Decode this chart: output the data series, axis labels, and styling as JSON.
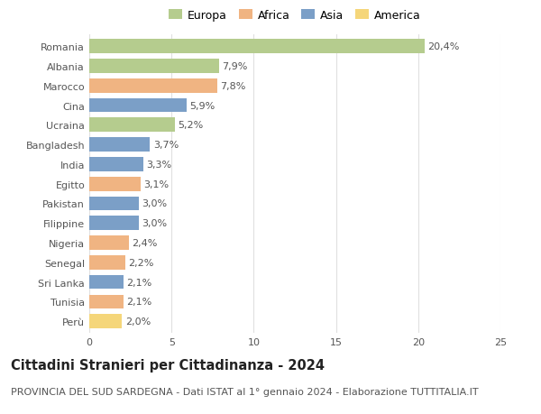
{
  "countries": [
    "Romania",
    "Albania",
    "Marocco",
    "Cina",
    "Ucraina",
    "Bangladesh",
    "India",
    "Egitto",
    "Pakistan",
    "Filippine",
    "Nigeria",
    "Senegal",
    "Sri Lanka",
    "Tunisia",
    "Perù"
  ],
  "values": [
    20.4,
    7.9,
    7.8,
    5.9,
    5.2,
    3.7,
    3.3,
    3.1,
    3.0,
    3.0,
    2.4,
    2.2,
    2.1,
    2.1,
    2.0
  ],
  "labels": [
    "20,4%",
    "7,9%",
    "7,8%",
    "5,9%",
    "5,2%",
    "3,7%",
    "3,3%",
    "3,1%",
    "3,0%",
    "3,0%",
    "2,4%",
    "2,2%",
    "2,1%",
    "2,1%",
    "2,0%"
  ],
  "continents": [
    "Europa",
    "Europa",
    "Africa",
    "Asia",
    "Europa",
    "Asia",
    "Asia",
    "Africa",
    "Asia",
    "Asia",
    "Africa",
    "Africa",
    "Asia",
    "Africa",
    "America"
  ],
  "continent_colors": {
    "Europa": "#b5cc8e",
    "Africa": "#f0b482",
    "Asia": "#7b9fc7",
    "America": "#f5d67a"
  },
  "legend_order": [
    "Europa",
    "Africa",
    "Asia",
    "America"
  ],
  "title": "Cittadini Stranieri per Cittadinanza - 2024",
  "subtitle": "PROVINCIA DEL SUD SARDEGNA - Dati ISTAT al 1° gennaio 2024 - Elaborazione TUTTITALIA.IT",
  "xlim": [
    0,
    25
  ],
  "xticks": [
    0,
    5,
    10,
    15,
    20,
    25
  ],
  "background_color": "#ffffff",
  "grid_color": "#e0e0e0",
  "bar_height": 0.72,
  "title_fontsize": 10.5,
  "subtitle_fontsize": 8,
  "label_fontsize": 8,
  "tick_fontsize": 8,
  "legend_fontsize": 9
}
